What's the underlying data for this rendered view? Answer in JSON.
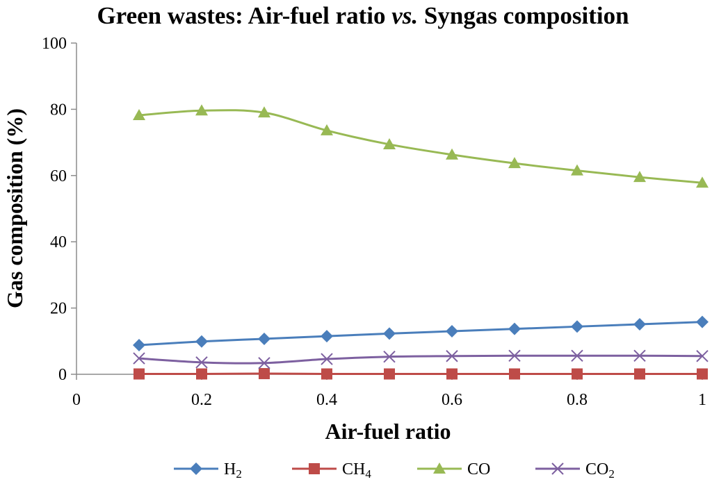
{
  "chart_data": {
    "type": "line",
    "title_main": "Green wastes: Air-fuel ratio ",
    "title_italic": "vs.",
    "title_tail": " Syngas composition",
    "xlabel": "Air-fuel ratio",
    "ylabel": "Gas composition (%)",
    "xlim": [
      0,
      1
    ],
    "ylim": [
      0,
      100
    ],
    "x_ticks": [
      "0",
      "0.2",
      "0.4",
      "0.6",
      "0.8",
      "1"
    ],
    "y_ticks": [
      "0",
      "20",
      "40",
      "60",
      "80",
      "100"
    ],
    "x": [
      0.1,
      0.2,
      0.3,
      0.4,
      0.5,
      0.6,
      0.7,
      0.8,
      0.9,
      1.0
    ],
    "series": [
      {
        "name": "H",
        "sub": "2",
        "color": "#4a7ebb",
        "marker": "diamond",
        "values": [
          8.8,
          9.9,
          10.7,
          11.5,
          12.3,
          13.0,
          13.7,
          14.4,
          15.1,
          15.8
        ]
      },
      {
        "name": "CH",
        "sub": "4",
        "color": "#be4b48",
        "marker": "square",
        "values": [
          0.1,
          0.1,
          0.2,
          0.1,
          0.1,
          0.1,
          0.1,
          0.1,
          0.1,
          0.1
        ]
      },
      {
        "name": "CO",
        "sub": "",
        "color": "#98b954",
        "marker": "triangle",
        "values": [
          78.2,
          79.6,
          79.0,
          73.6,
          69.4,
          66.3,
          63.7,
          61.5,
          59.5,
          57.8
        ]
      },
      {
        "name": "CO",
        "sub": "2",
        "color": "#7d60a0",
        "marker": "x",
        "values": [
          4.8,
          3.6,
          3.4,
          4.6,
          5.3,
          5.5,
          5.6,
          5.6,
          5.6,
          5.5
        ]
      }
    ]
  }
}
